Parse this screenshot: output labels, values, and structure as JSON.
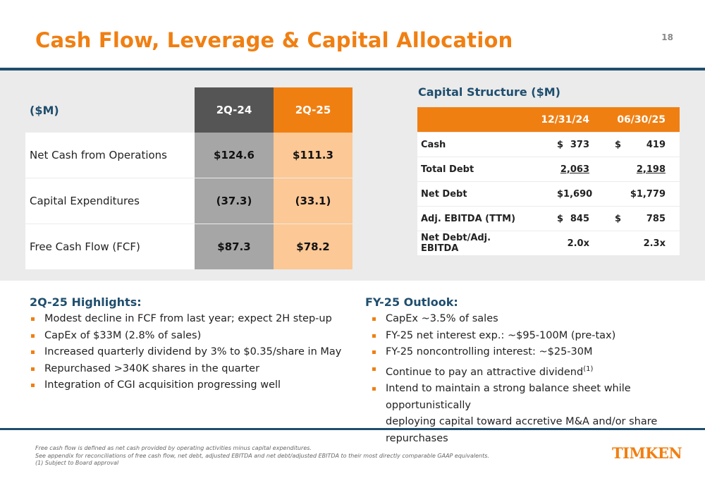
{
  "title": "Cash Flow, Leverage & Capital Allocation",
  "page_number": "18",
  "cash_flow": {
    "header": {
      "label": "($M)",
      "col1": "2Q-24",
      "col2": "2Q-25"
    },
    "rows": [
      {
        "label": "Net Cash from Operations",
        "col1": "$124.6",
        "col2": "$111.3"
      },
      {
        "label": "Capital Expenditures",
        "col1": "(37.3)",
        "col2": "(33.1)"
      },
      {
        "label": "Free Cash Flow (FCF)",
        "col1": "$87.3",
        "col2": "$78.2"
      }
    ]
  },
  "capital_structure": {
    "title": "Capital Structure ($M)",
    "header": {
      "col1": "12/31/24",
      "col2": "06/30/25"
    },
    "rows": [
      {
        "label": "Cash",
        "col1_prefix": "$",
        "col1": "373",
        "col2_prefix": "$",
        "col2": "419"
      },
      {
        "label": "Total Debt",
        "col1_prefix": "",
        "col1": "2,063",
        "col2_prefix": "",
        "col2": "2,198"
      },
      {
        "label": "Net Debt",
        "col1_prefix": "",
        "col1": "$1,690",
        "col2_prefix": "",
        "col2": "$1,779"
      },
      {
        "label": "Adj. EBITDA (TTM)",
        "col1_prefix": "$",
        "col1": "845",
        "col2_prefix": "$",
        "col2": "785"
      },
      {
        "label": "Net Debt/Adj. EBITDA",
        "col1_prefix": "",
        "col1": "2.0x",
        "col2_prefix": "",
        "col2": "2.3x"
      }
    ]
  },
  "highlights": {
    "title": "2Q-25 Highlights:",
    "items": [
      "Modest decline in FCF from last year; expect 2H step-up",
      "CapEx of $33M (2.8% of sales)",
      "Increased quarterly dividend by 3% to $0.35/share in May",
      "Repurchased >340K shares in the quarter",
      "Integration of CGI acquisition progressing well"
    ]
  },
  "outlook": {
    "title": "FY-25 Outlook:",
    "items": [
      "CapEx ~3.5% of sales",
      "FY-25 net interest exp.: ~$95-100M (pre-tax)",
      "FY-25 noncontrolling interest: ~$25-30M",
      "Continue to pay an attractive dividend",
      "Intend to maintain a strong balance sheet while opportunistically",
      "deploying capital toward accretive M&A and/or share repurchases"
    ],
    "dividend_footnote_marker": "(1)"
  },
  "footnotes": [
    "Free cash flow is defined as net cash provided by operating activities minus capital expenditures.",
    "See appendix for reconciliations of free cash flow, net debt, adjusted EBITDA and net debt/adjusted EBITDA to their most directly comparable GAAP equivalents.",
    "(1) Subject to Board approval"
  ],
  "logo_text": "TIMKEN",
  "colors": {
    "accent_orange": "#f07f12",
    "navy": "#1f4e6e",
    "light_orange": "#fcc895",
    "gray": "#a6a6a6",
    "dark_gray": "#555555"
  }
}
